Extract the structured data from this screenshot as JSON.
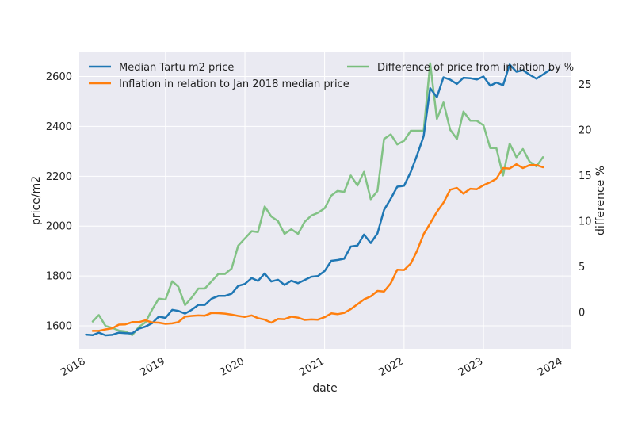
{
  "chart_data": {
    "type": "line",
    "xlabel": "date",
    "ylabel": "price/m2",
    "y2label": "difference %",
    "xlim": [
      "2017-12-01",
      "2024-02-05"
    ],
    "ylim": [
      1508,
      2697
    ],
    "y2lim": [
      -4.0,
      28.5
    ],
    "x_ticks": [
      {
        "date": "2018-01-01",
        "label": "2018"
      },
      {
        "date": "2019-01-01",
        "label": "2019"
      },
      {
        "date": "2020-01-01",
        "label": "2020"
      },
      {
        "date": "2021-01-01",
        "label": "2021"
      },
      {
        "date": "2022-01-01",
        "label": "2022"
      },
      {
        "date": "2023-01-01",
        "label": "2023"
      },
      {
        "date": "2024-01-01",
        "label": "2024"
      }
    ],
    "y_ticks": [
      1600,
      1800,
      2000,
      2200,
      2400,
      2600
    ],
    "y2_ticks": [
      0,
      5,
      10,
      15,
      20,
      25
    ],
    "grid": true,
    "legend_left": [
      "Median Tartu m2 price",
      "Inflation in relation to Jan 2018 median price"
    ],
    "legend_right": [
      "Difference of price from inflation by %"
    ],
    "series": [
      {
        "name": "Median Tartu m2 price",
        "color": "#1f77b4",
        "axis": "left",
        "x": [
          "2018-01",
          "2018-02",
          "2018-03",
          "2018-04",
          "2018-05",
          "2018-06",
          "2018-07",
          "2018-08",
          "2018-09",
          "2018-10",
          "2018-11",
          "2018-12",
          "2019-01",
          "2019-02",
          "2019-03",
          "2019-04",
          "2019-05",
          "2019-06",
          "2019-07",
          "2019-08",
          "2019-09",
          "2019-10",
          "2019-11",
          "2019-12",
          "2020-01",
          "2020-02",
          "2020-03",
          "2020-04",
          "2020-05",
          "2020-06",
          "2020-07",
          "2020-08",
          "2020-09",
          "2020-10",
          "2020-11",
          "2020-12",
          "2021-01",
          "2021-02",
          "2021-03",
          "2021-04",
          "2021-05",
          "2021-06",
          "2021-07",
          "2021-08",
          "2021-09",
          "2021-10",
          "2021-11",
          "2021-12",
          "2022-01",
          "2022-02",
          "2022-03",
          "2022-04",
          "2022-05",
          "2022-06",
          "2022-07",
          "2022-08",
          "2022-09",
          "2022-10",
          "2022-11",
          "2022-12",
          "2023-01",
          "2023-02",
          "2023-03",
          "2023-04",
          "2023-05",
          "2023-06",
          "2023-07",
          "2023-08",
          "2023-09",
          "2023-10",
          "2023-11"
        ],
        "values": [
          1565,
          1563,
          1573,
          1562,
          1564,
          1573,
          1571,
          1570,
          1589,
          1597,
          1611,
          1637,
          1632,
          1664,
          1660,
          1649,
          1664,
          1684,
          1684,
          1709,
          1720,
          1720,
          1729,
          1760,
          1768,
          1792,
          1780,
          1810,
          1778,
          1785,
          1764,
          1781,
          1771,
          1784,
          1797,
          1800,
          1820,
          1861,
          1864,
          1869,
          1918,
          1922,
          1966,
          1932,
          1971,
          2065,
          2110,
          2158,
          2162,
          2218,
          2283,
          2361,
          2553,
          2517,
          2597,
          2587,
          2570,
          2595,
          2593,
          2588,
          2600,
          2563,
          2576,
          2565,
          2648,
          2619,
          2625,
          2607,
          2591,
          2608,
          2626
        ]
      },
      {
        "name": "Inflation in relation to Jan 2018 median price",
        "color": "#ff7f0e",
        "axis": "left",
        "x": [
          "2018-02",
          "2018-03",
          "2018-04",
          "2018-05",
          "2018-06",
          "2018-07",
          "2018-08",
          "2018-09",
          "2018-10",
          "2018-11",
          "2018-12",
          "2019-01",
          "2019-02",
          "2019-03",
          "2019-04",
          "2019-05",
          "2019-06",
          "2019-07",
          "2019-08",
          "2019-09",
          "2019-10",
          "2019-11",
          "2019-12",
          "2020-01",
          "2020-02",
          "2020-03",
          "2020-04",
          "2020-05",
          "2020-06",
          "2020-07",
          "2020-08",
          "2020-09",
          "2020-10",
          "2020-11",
          "2020-12",
          "2021-01",
          "2021-02",
          "2021-03",
          "2021-04",
          "2021-05",
          "2021-06",
          "2021-07",
          "2021-08",
          "2021-09",
          "2021-10",
          "2021-11",
          "2021-12",
          "2022-01",
          "2022-02",
          "2022-03",
          "2022-04",
          "2022-05",
          "2022-06",
          "2022-07",
          "2022-08",
          "2022-09",
          "2022-10",
          "2022-11",
          "2022-12",
          "2023-01",
          "2023-02",
          "2023-03",
          "2023-04",
          "2023-05",
          "2023-06",
          "2023-07",
          "2023-08",
          "2023-09",
          "2023-10"
        ],
        "values": [
          1580,
          1580,
          1586,
          1590,
          1605,
          1606,
          1615,
          1615,
          1622,
          1614,
          1613,
          1608,
          1610,
          1615,
          1637,
          1640,
          1642,
          1641,
          1652,
          1651,
          1649,
          1645,
          1640,
          1636,
          1642,
          1631,
          1625,
          1613,
          1628,
          1627,
          1637,
          1633,
          1624,
          1626,
          1625,
          1635,
          1650,
          1647,
          1652,
          1667,
          1687,
          1706,
          1718,
          1740,
          1738,
          1771,
          1825,
          1824,
          1850,
          1900,
          1968,
          2011,
          2057,
          2094,
          2146,
          2153,
          2130,
          2150,
          2148,
          2164,
          2176,
          2190,
          2233,
          2231,
          2248,
          2233,
          2245,
          2245,
          2236
        ]
      },
      {
        "name": "Difference of price from inflation by %",
        "color": "#2ca02c",
        "axis": "right",
        "x": [
          "2018-02",
          "2018-03",
          "2018-04",
          "2018-05",
          "2018-06",
          "2018-07",
          "2018-08",
          "2018-09",
          "2018-10",
          "2018-11",
          "2018-12",
          "2019-01",
          "2019-02",
          "2019-03",
          "2019-04",
          "2019-05",
          "2019-06",
          "2019-07",
          "2019-08",
          "2019-09",
          "2019-10",
          "2019-11",
          "2019-12",
          "2020-01",
          "2020-02",
          "2020-03",
          "2020-04",
          "2020-05",
          "2020-06",
          "2020-07",
          "2020-08",
          "2020-09",
          "2020-10",
          "2020-11",
          "2020-12",
          "2021-01",
          "2021-02",
          "2021-03",
          "2021-04",
          "2021-05",
          "2021-06",
          "2021-07",
          "2021-08",
          "2021-09",
          "2021-10",
          "2021-11",
          "2021-12",
          "2022-01",
          "2022-02",
          "2022-03",
          "2022-04",
          "2022-05",
          "2022-06",
          "2022-07",
          "2022-08",
          "2022-09",
          "2022-10",
          "2022-11",
          "2022-12",
          "2023-01",
          "2023-02",
          "2023-03",
          "2023-04",
          "2023-05",
          "2023-06",
          "2023-07",
          "2023-08",
          "2023-09",
          "2023-10"
        ],
        "values": [
          -1.0,
          -0.3,
          -1.5,
          -1.7,
          -2.0,
          -2.1,
          -2.5,
          -1.6,
          -1.1,
          0.3,
          1.5,
          1.4,
          3.4,
          2.8,
          0.8,
          1.6,
          2.6,
          2.6,
          3.4,
          4.2,
          4.2,
          4.8,
          7.3,
          8.1,
          8.9,
          8.8,
          11.6,
          10.5,
          10.0,
          8.6,
          9.1,
          8.6,
          9.9,
          10.6,
          10.9,
          11.4,
          12.8,
          13.3,
          13.2,
          15.0,
          13.9,
          15.4,
          12.4,
          13.3,
          19.0,
          19.5,
          18.4,
          18.8,
          19.9,
          19.9,
          19.9,
          27.3,
          21.2,
          23.0,
          20.0,
          19.0,
          22.0,
          21.0,
          21.0,
          20.5,
          18.0,
          18.0,
          15.0,
          18.5,
          17.0,
          17.9,
          16.5,
          16.0,
          17.0
        ]
      }
    ]
  }
}
